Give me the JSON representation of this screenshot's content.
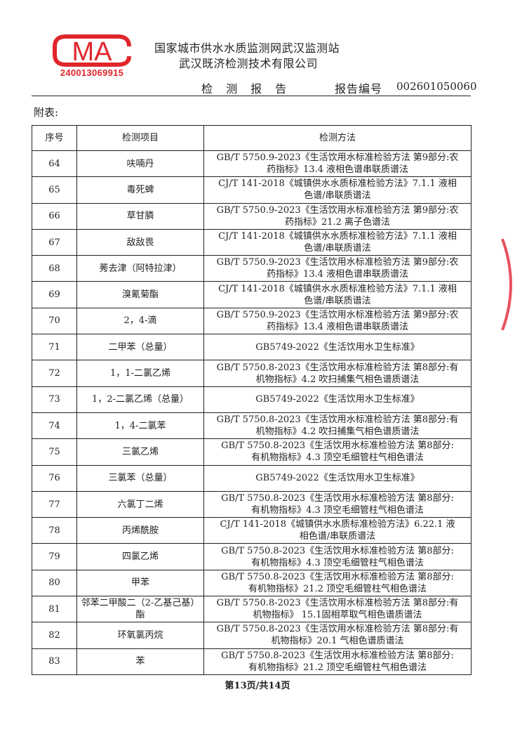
{
  "header": {
    "logo_text": "CMA",
    "cert_number": "240013069915",
    "org_line1": "国家城市供水水质监测网武汉监测站",
    "org_line2": "武汉既济检测技术有限公司",
    "report_title": "检 测 报 告",
    "report_no_label": "报告编号",
    "report_no": "002601050060"
  },
  "appendix_label": "附表:",
  "table": {
    "headers": [
      "序号",
      "检测项目",
      "检测方法"
    ],
    "rows": [
      {
        "no": "64",
        "item": "呋喃丹",
        "method": [
          "GB/T 5750.9-2023《生活饮用水标准检验方法 第9部分:农",
          "药指标》13.4 液相色谱串联质谱法"
        ]
      },
      {
        "no": "65",
        "item": "毒死蜱",
        "method": [
          "CJ/T 141-2018《城镇供水水质标准检验方法》7.1.1 液相",
          "色谱/串联质谱法"
        ]
      },
      {
        "no": "66",
        "item": "草甘膦",
        "method": [
          "GB/T 5750.9-2023《生活饮用水标准检验方法 第9部分:农",
          "药指标》21.2 离子色谱法"
        ]
      },
      {
        "no": "67",
        "item": "敌敌畏",
        "method": [
          "CJ/T 141-2018《城镇供水水质标准检验方法》7.1.1 液相",
          "色谱/串联质谱法"
        ]
      },
      {
        "no": "68",
        "item": "莠去津（阿特拉津）",
        "method": [
          "GB/T 5750.9-2023《生活饮用水标准检验方法 第9部分:农",
          "药指标》13.4 液相色谱串联质谱法"
        ]
      },
      {
        "no": "69",
        "item": "溴氰菊酯",
        "method": [
          "CJ/T 141-2018《城镇供水水质标准检验方法》7.1.1 液相",
          "色谱/串联质谱法"
        ]
      },
      {
        "no": "70",
        "item": "2，4-滴",
        "method": [
          "GB/T 5750.9-2023《生活饮用水标准检验方法 第9部分:农",
          "药指标》13.4 液相色谱串联质谱法"
        ]
      },
      {
        "no": "71",
        "item": "二甲苯（总量）",
        "method": [
          "GB5749-2022《生活饮用水卫生标准》"
        ]
      },
      {
        "no": "72",
        "item": "1，1-二氯乙烯",
        "method": [
          "GB/T 5750.8-2023《生活饮用水标准检验方法 第8部分:有",
          "机物指标》4.2 吹扫捕集气相色谱质谱法"
        ]
      },
      {
        "no": "73",
        "item": "1，2-二氯乙烯（总量）",
        "method": [
          "GB5749-2022《生活饮用水卫生标准》"
        ]
      },
      {
        "no": "74",
        "item": "1，4-二氯苯",
        "method": [
          "GB/T 5750.8-2023《生活饮用水标准检验方法 第8部分:有",
          "机物指标》4.2 吹扫捕集气相色谱质谱法"
        ]
      },
      {
        "no": "75",
        "item": "三氯乙烯",
        "method": [
          "GB/T 5750.8-2023《生活饮用水标准检验方法 第8部分:",
          "有机物指标》4.3 顶空毛细管柱气相色谱法"
        ]
      },
      {
        "no": "76",
        "item": "三氯苯（总量）",
        "method": [
          "GB5749-2022《生活饮用水卫生标准》"
        ]
      },
      {
        "no": "77",
        "item": "六氯丁二烯",
        "method": [
          "GB/T 5750.8-2023《生活饮用水标准检验方法 第8部分:",
          "有机物指标》4.3 顶空毛细管柱气相色谱法"
        ]
      },
      {
        "no": "78",
        "item": "丙烯酰胺",
        "method": [
          "CJ/T 141-2018《城镇供水水质标准检验方法》6.22.1 液",
          "相色谱/串联质谱法"
        ]
      },
      {
        "no": "79",
        "item": "四氯乙烯",
        "method": [
          "GB/T 5750.8-2023《生活饮用水标准检验方法 第8部分:",
          "有机物指标》4.3 顶空毛细管柱气相色谱法"
        ]
      },
      {
        "no": "80",
        "item": "甲苯",
        "method": [
          "GB/T 5750.8-2023《生活饮用水标准检验方法 第8部分:",
          "有机物指标》21.2 顶空毛细管柱气相色谱法"
        ]
      },
      {
        "no": "81",
        "item": "邻苯二甲酸二（2-乙基己基）酯",
        "method": [
          "GB/T 5750.8-2023《生活饮用水标准检验方法 第8部分:有",
          "机物指标》 15.1固相萃取气相色谱质谱法"
        ]
      },
      {
        "no": "82",
        "item": "环氧氯丙烷",
        "method": [
          "GB/T 5750.8-2023《生活饮用水标准检验方法 第8部分:有",
          "机物指标》20.1 气相色谱质谱法"
        ]
      },
      {
        "no": "83",
        "item": "苯",
        "method": [
          "GB/T 5750.8-2023《生活饮用水标准检验方法 第8部分:",
          "有机物指标》21.2 顶空毛细管柱气相色谱法"
        ]
      }
    ]
  },
  "footer": {
    "page_info": "第13页/共14页"
  },
  "colors": {
    "logo_red": "#e0262b",
    "seal_red": "#e8525e"
  }
}
